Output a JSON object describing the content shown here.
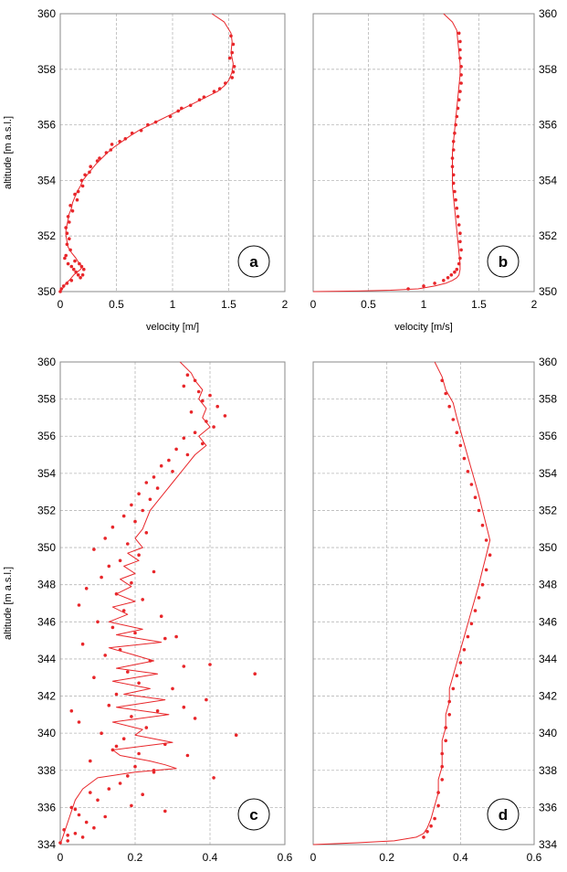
{
  "chart_data": [
    {
      "panel": "a",
      "type": "scatter",
      "label": "a",
      "xlabel": "velocity [m/]",
      "ylabel": "altitude [m a.s.l.]",
      "xlim": [
        0,
        2
      ],
      "ylim": [
        350,
        360
      ],
      "xticks": [
        "0",
        "0.5",
        "1",
        "1.5",
        "2"
      ],
      "yticks": [
        "350",
        "352",
        "354",
        "356",
        "358",
        "360"
      ],
      "color": "#e8262a",
      "series": [
        {
          "kind": "line",
          "x": [
            1.35,
            1.46,
            1.52,
            1.53,
            1.52,
            1.54,
            1.53,
            1.5,
            1.46,
            1.4,
            1.3,
            1.2,
            1.1,
            1.0,
            0.9,
            0.8,
            0.7,
            0.62,
            0.55,
            0.48,
            0.42,
            0.37,
            0.32,
            0.28,
            0.24,
            0.2,
            0.18,
            0.15,
            0.13,
            0.11,
            0.1,
            0.08,
            0.07,
            0.06,
            0.05,
            0.05,
            0.06,
            0.07,
            0.1,
            0.14,
            0.17,
            0.2,
            0.18,
            0.15,
            0.12,
            0.08,
            0.05,
            0.02,
            0.0
          ],
          "y": [
            360.0,
            359.7,
            359.3,
            359.0,
            358.6,
            358.2,
            357.9,
            357.6,
            357.4,
            357.2,
            357.0,
            356.8,
            356.6,
            356.4,
            356.2,
            356.0,
            355.8,
            355.6,
            355.4,
            355.2,
            355.0,
            354.8,
            354.6,
            354.4,
            354.2,
            354.0,
            353.8,
            353.6,
            353.4,
            353.2,
            353.0,
            352.8,
            352.6,
            352.4,
            352.2,
            352.0,
            351.8,
            351.6,
            351.4,
            351.2,
            351.0,
            350.9,
            350.8,
            350.7,
            350.6,
            350.4,
            350.3,
            350.1,
            350.0
          ]
        },
        {
          "kind": "points",
          "x": [
            1.52,
            1.54,
            1.53,
            1.51,
            1.55,
            1.54,
            1.53,
            1.47,
            1.42,
            1.37,
            1.28,
            1.24,
            1.16,
            1.08,
            1.05,
            0.98,
            0.85,
            0.78,
            0.72,
            0.64,
            0.58,
            0.53,
            0.46,
            0.45,
            0.41,
            0.35,
            0.33,
            0.27,
            0.26,
            0.22,
            0.19,
            0.2,
            0.16,
            0.13,
            0.15,
            0.09,
            0.11,
            0.07,
            0.08,
            0.05,
            0.06,
            0.08,
            0.06,
            0.09,
            0.05,
            0.04,
            0.07,
            0.1,
            0.12,
            0.14,
            0.16,
            0.18,
            0.2,
            0.21,
            0.19,
            0.17,
            0.13,
            0.1,
            0.06,
            0.03,
            0.01,
            0.0
          ],
          "y": [
            359.2,
            358.9,
            358.6,
            358.4,
            358.1,
            357.9,
            357.7,
            357.5,
            357.3,
            357.2,
            357.0,
            356.9,
            356.7,
            356.6,
            356.5,
            356.3,
            356.1,
            356.0,
            355.8,
            355.7,
            355.5,
            355.4,
            355.3,
            355.1,
            355.0,
            354.8,
            354.7,
            354.5,
            354.3,
            354.2,
            354.0,
            353.8,
            353.6,
            353.5,
            353.3,
            353.1,
            352.9,
            352.7,
            352.5,
            352.3,
            352.1,
            351.9,
            351.7,
            351.5,
            351.3,
            351.2,
            351.0,
            350.9,
            350.8,
            350.7,
            350.6,
            350.5,
            350.6,
            350.8,
            350.9,
            351.0,
            351.1,
            350.4,
            350.3,
            350.2,
            350.1,
            350.0
          ]
        }
      ]
    },
    {
      "panel": "b",
      "type": "scatter",
      "label": "b",
      "xlabel": "velocity [m/s]",
      "ylabel": "",
      "xlim": [
        0,
        2
      ],
      "ylim": [
        350,
        360
      ],
      "xticks": [
        "0",
        "0.5",
        "1",
        "1.5",
        "2"
      ],
      "yticks": [
        "350",
        "352",
        "354",
        "356",
        "358",
        "360"
      ],
      "color": "#e8262a",
      "series": [
        {
          "kind": "line",
          "x": [
            1.18,
            1.26,
            1.3,
            1.31,
            1.32,
            1.33,
            1.33,
            1.32,
            1.31,
            1.3,
            1.29,
            1.28,
            1.27,
            1.26,
            1.26,
            1.26,
            1.26,
            1.27,
            1.28,
            1.29,
            1.3,
            1.31,
            1.32,
            1.33,
            1.33,
            1.32,
            1.3,
            1.26,
            1.2,
            1.1,
            0.95,
            0.7,
            0.4,
            0.0
          ],
          "y": [
            360.0,
            359.7,
            359.4,
            359.0,
            358.6,
            358.2,
            357.8,
            357.4,
            357.0,
            356.6,
            356.2,
            355.8,
            355.4,
            355.0,
            354.6,
            354.2,
            353.8,
            353.4,
            353.0,
            352.6,
            352.2,
            351.8,
            351.4,
            351.0,
            350.8,
            350.6,
            350.5,
            350.4,
            350.3,
            350.2,
            350.1,
            350.05,
            350.02,
            350.0
          ]
        },
        {
          "kind": "points",
          "x": [
            1.32,
            1.33,
            1.33,
            1.33,
            1.34,
            1.34,
            1.34,
            1.33,
            1.32,
            1.31,
            1.3,
            1.29,
            1.28,
            1.27,
            1.27,
            1.26,
            1.26,
            1.27,
            1.27,
            1.28,
            1.29,
            1.3,
            1.31,
            1.32,
            1.33,
            1.33,
            1.34,
            1.33,
            1.32,
            1.3,
            1.28,
            1.25,
            1.22,
            1.18,
            1.1,
            1.0,
            0.86
          ],
          "y": [
            359.3,
            359.0,
            358.7,
            358.4,
            358.1,
            357.8,
            357.5,
            357.2,
            356.9,
            356.6,
            356.3,
            356.0,
            355.7,
            355.4,
            355.1,
            354.8,
            354.5,
            354.2,
            353.9,
            353.6,
            353.3,
            353.0,
            352.7,
            352.4,
            352.1,
            351.8,
            351.5,
            351.2,
            351.0,
            350.8,
            350.7,
            350.6,
            350.5,
            350.4,
            350.3,
            350.2,
            350.1
          ]
        }
      ]
    },
    {
      "panel": "c",
      "type": "scatter",
      "label": "c",
      "xlabel": "",
      "ylabel": "altitude [m a.s.l.]",
      "xlim": [
        0,
        0.6
      ],
      "ylim": [
        334,
        360
      ],
      "xticks": [
        "0",
        "0.2",
        "0.4",
        "0.6"
      ],
      "yticks": [
        "334",
        "336",
        "338",
        "340",
        "342",
        "344",
        "346",
        "348",
        "350",
        "352",
        "354",
        "356",
        "358",
        "360"
      ],
      "color": "#e8262a",
      "series": [
        {
          "kind": "line",
          "x": [
            0.32,
            0.35,
            0.36,
            0.38,
            0.37,
            0.39,
            0.38,
            0.4,
            0.37,
            0.39,
            0.36,
            0.34,
            0.32,
            0.3,
            0.28,
            0.26,
            0.24,
            0.23,
            0.22,
            0.2,
            0.22,
            0.18,
            0.21,
            0.17,
            0.2,
            0.16,
            0.19,
            0.15,
            0.2,
            0.14,
            0.18,
            0.13,
            0.22,
            0.15,
            0.27,
            0.13,
            0.2,
            0.25,
            0.15,
            0.26,
            0.14,
            0.24,
            0.17,
            0.28,
            0.15,
            0.29,
            0.14,
            0.22,
            0.2,
            0.3,
            0.14,
            0.16,
            0.24,
            0.28,
            0.31,
            0.2,
            0.1,
            0.06,
            0.04,
            0.03,
            0.02,
            0.01,
            0.0
          ],
          "y": [
            360.0,
            359.4,
            359.0,
            358.5,
            358.0,
            357.5,
            357.0,
            356.5,
            356.0,
            355.5,
            355.0,
            354.5,
            354.0,
            353.5,
            353.0,
            352.5,
            352.0,
            351.5,
            351.0,
            350.5,
            350.0,
            349.7,
            349.3,
            349.0,
            348.6,
            348.3,
            347.9,
            347.5,
            347.1,
            346.8,
            346.4,
            346.0,
            345.6,
            345.3,
            344.9,
            344.6,
            344.2,
            343.9,
            343.5,
            343.2,
            342.8,
            342.4,
            342.1,
            341.8,
            341.4,
            341.0,
            340.6,
            340.2,
            339.9,
            339.5,
            339.1,
            338.8,
            338.5,
            338.3,
            338.1,
            337.9,
            337.6,
            337.0,
            336.4,
            335.8,
            335.2,
            334.6,
            334.0
          ]
        },
        {
          "kind": "points",
          "x": [
            0.34,
            0.36,
            0.33,
            0.37,
            0.4,
            0.38,
            0.42,
            0.35,
            0.44,
            0.39,
            0.41,
            0.36,
            0.33,
            0.38,
            0.31,
            0.34,
            0.29,
            0.27,
            0.3,
            0.25,
            0.23,
            0.26,
            0.21,
            0.24,
            0.19,
            0.22,
            0.17,
            0.2,
            0.14,
            0.23,
            0.12,
            0.18,
            0.09,
            0.21,
            0.16,
            0.13,
            0.25,
            0.11,
            0.19,
            0.07,
            0.15,
            0.22,
            0.05,
            0.17,
            0.27,
            0.1,
            0.14,
            0.2,
            0.28,
            0.06,
            0.16,
            0.12,
            0.24,
            0.33,
            0.18,
            0.09,
            0.21,
            0.3,
            0.15,
            0.39,
            0.13,
            0.26,
            0.19,
            0.52,
            0.05,
            0.23,
            0.11,
            0.17,
            0.28,
            0.14,
            0.34,
            0.08,
            0.2,
            0.25,
            0.41,
            0.03,
            0.16,
            0.13,
            0.22,
            0.47,
            0.1,
            0.19,
            0.28,
            0.36,
            0.21,
            0.15,
            0.33,
            0.25,
            0.18,
            0.31,
            0.4,
            0.12,
            0.07,
            0.09,
            0.04,
            0.06,
            0.02,
            0.08,
            0.03,
            0.05,
            0.01,
            0.04,
            0.02,
            0.0
          ],
          "y": [
            359.3,
            359.0,
            358.7,
            358.4,
            358.2,
            357.9,
            357.6,
            357.3,
            357.1,
            356.8,
            356.5,
            356.2,
            355.9,
            355.6,
            355.3,
            355.0,
            354.7,
            354.4,
            354.1,
            353.8,
            353.5,
            353.2,
            352.9,
            352.6,
            352.3,
            352.0,
            351.7,
            351.4,
            351.1,
            350.8,
            350.5,
            350.2,
            349.9,
            349.6,
            349.3,
            349.0,
            348.7,
            348.4,
            348.1,
            347.8,
            347.5,
            347.2,
            346.9,
            346.6,
            346.3,
            346.0,
            345.7,
            345.4,
            345.1,
            344.8,
            344.5,
            344.2,
            343.9,
            343.6,
            343.3,
            343.0,
            342.7,
            342.4,
            342.1,
            341.8,
            341.5,
            341.2,
            340.9,
            343.2,
            340.6,
            340.3,
            340.0,
            339.7,
            339.4,
            339.1,
            338.8,
            338.5,
            338.2,
            337.9,
            337.6,
            341.2,
            337.3,
            337.0,
            336.7,
            339.9,
            336.4,
            336.1,
            335.8,
            340.8,
            338.9,
            339.3,
            341.4,
            338.0,
            337.7,
            345.2,
            343.7,
            335.5,
            335.2,
            334.9,
            334.6,
            334.4,
            334.2,
            336.8,
            336.0,
            335.6,
            334.8,
            335.9,
            334.5,
            334.1
          ]
        }
      ]
    },
    {
      "panel": "d",
      "type": "scatter",
      "label": "d",
      "xlabel": "",
      "ylabel": "",
      "xlim": [
        0,
        0.6
      ],
      "ylim": [
        334,
        360
      ],
      "xticks": [
        "0",
        "0.2",
        "0.4",
        "0.6"
      ],
      "yticks": [
        "334",
        "336",
        "338",
        "340",
        "342",
        "344",
        "346",
        "348",
        "350",
        "352",
        "354",
        "356",
        "358",
        "360"
      ],
      "color": "#e8262a",
      "series": [
        {
          "kind": "line",
          "x": [
            0.33,
            0.35,
            0.36,
            0.38,
            0.39,
            0.4,
            0.41,
            0.42,
            0.43,
            0.44,
            0.45,
            0.46,
            0.47,
            0.48,
            0.47,
            0.46,
            0.45,
            0.44,
            0.43,
            0.42,
            0.41,
            0.4,
            0.39,
            0.38,
            0.37,
            0.37,
            0.36,
            0.36,
            0.35,
            0.35,
            0.35,
            0.34,
            0.34,
            0.33,
            0.32,
            0.31,
            0.3,
            0.28,
            0.22,
            0.12,
            0.0
          ],
          "y": [
            360.0,
            359.2,
            358.5,
            357.8,
            357.0,
            356.3,
            355.6,
            354.9,
            354.2,
            353.5,
            352.8,
            352.0,
            351.2,
            350.4,
            349.6,
            348.8,
            348.0,
            347.3,
            346.6,
            345.9,
            345.2,
            344.5,
            343.8,
            343.1,
            342.4,
            341.7,
            341.0,
            340.3,
            339.6,
            338.9,
            338.2,
            337.5,
            336.8,
            336.1,
            335.4,
            334.9,
            334.6,
            334.4,
            334.2,
            334.1,
            334.0
          ]
        },
        {
          "kind": "points",
          "x": [
            0.35,
            0.36,
            0.37,
            0.38,
            0.39,
            0.4,
            0.41,
            0.42,
            0.43,
            0.44,
            0.45,
            0.46,
            0.47,
            0.48,
            0.47,
            0.46,
            0.45,
            0.44,
            0.43,
            0.42,
            0.41,
            0.4,
            0.39,
            0.38,
            0.37,
            0.37,
            0.36,
            0.36,
            0.35,
            0.35,
            0.35,
            0.34,
            0.34,
            0.33,
            0.32,
            0.31,
            0.3
          ],
          "y": [
            359.0,
            358.3,
            357.6,
            356.9,
            356.2,
            355.5,
            354.8,
            354.1,
            353.4,
            352.7,
            352.0,
            351.2,
            350.4,
            349.6,
            348.8,
            348.0,
            347.3,
            346.6,
            345.9,
            345.2,
            344.5,
            343.8,
            343.1,
            342.4,
            341.7,
            341.0,
            340.3,
            339.6,
            338.9,
            338.2,
            337.5,
            336.8,
            336.1,
            335.4,
            335.0,
            334.7,
            334.4
          ]
        }
      ]
    }
  ]
}
